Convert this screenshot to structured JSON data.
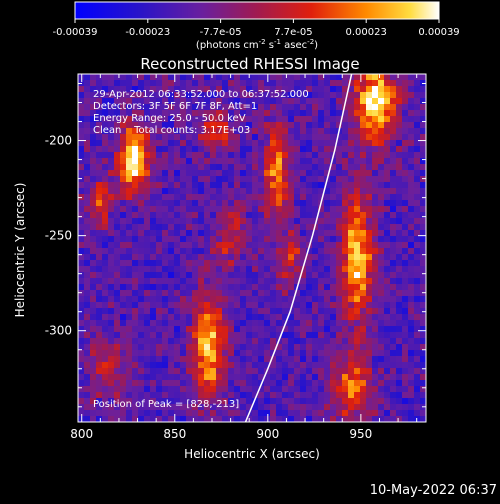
{
  "chart_data": {
    "type": "heatmap",
    "title": "Reconstructed RHESSI Image",
    "xlabel": "Heliocentric X (arcsec)",
    "ylabel": "Heliocentric Y (arcsec)",
    "xlim": [
      798,
      985
    ],
    "ylim": [
      -348,
      -165
    ],
    "x_ticks": [
      800,
      850,
      900,
      950
    ],
    "y_ticks": [
      -200,
      -250,
      -300
    ],
    "grid": false,
    "colorbar": {
      "position": "top",
      "range": [
        -0.00039,
        0.00039
      ],
      "tick_labels": [
        "-0.00039",
        "-0.00023",
        "-7.7e-05",
        "7.7e-05",
        "0.00023",
        "0.00039"
      ],
      "label": "(photons cm",
      "label_sup1": "-2",
      "label_mid": " s",
      "label_sup2": "-1",
      "label_end": " asec",
      "label_sup3": "-2",
      "label_close": ")"
    },
    "annotations": {
      "time_range": "29-Apr-2012 06:33:52.000 to 06:37:52.000",
      "detectors": "Detectors: 3F 5F 6F 7F 8F, Att=1",
      "energy": "Energy Range: 25.0 - 50.0 keV",
      "method_counts": "Clean    Total counts: 3.17E+03",
      "peak": "Position of Peak = [828,-213]"
    },
    "limb_curve": [
      [
        888,
        -348
      ],
      [
        900,
        -320
      ],
      [
        912,
        -290
      ],
      [
        924,
        -250
      ],
      [
        936,
        -205
      ],
      [
        945,
        -165
      ]
    ],
    "bright_sources": [
      {
        "x": 828,
        "y": -210,
        "amp": 1.0,
        "sx": 6,
        "sy": 12
      },
      {
        "x": 810,
        "y": -232,
        "amp": 0.55,
        "sx": 5,
        "sy": 8
      },
      {
        "x": 872,
        "y": -195,
        "amp": 0.55,
        "sx": 6,
        "sy": 8
      },
      {
        "x": 868,
        "y": -308,
        "amp": 0.85,
        "sx": 6,
        "sy": 20
      },
      {
        "x": 905,
        "y": -216,
        "amp": 0.7,
        "sx": 5,
        "sy": 18
      },
      {
        "x": 912,
        "y": -262,
        "amp": 0.45,
        "sx": 5,
        "sy": 10
      },
      {
        "x": 958,
        "y": -180,
        "amp": 1.0,
        "sx": 8,
        "sy": 14
      },
      {
        "x": 948,
        "y": -262,
        "amp": 0.85,
        "sx": 6,
        "sy": 24
      },
      {
        "x": 945,
        "y": -330,
        "amp": 0.6,
        "sx": 8,
        "sy": 12
      },
      {
        "x": 880,
        "y": -248,
        "amp": 0.45,
        "sx": 6,
        "sy": 12
      },
      {
        "x": 814,
        "y": -320,
        "amp": 0.35,
        "sx": 8,
        "sy": 12
      }
    ]
  },
  "footer": {
    "timestamp": "10-May-2022 06:37"
  }
}
